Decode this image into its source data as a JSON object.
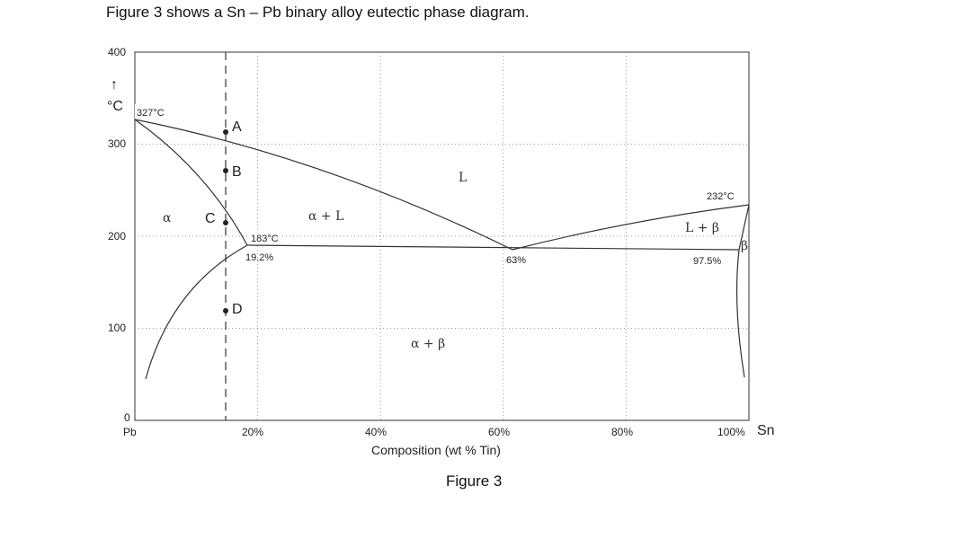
{
  "intro_text": "Figure 3 shows a Sn – Pb binary alloy eutectic phase diagram.",
  "caption": "Figure 3",
  "diagram": {
    "y_axis": {
      "unit": "°C",
      "arrow": "↑",
      "range": [
        0,
        400
      ],
      "ticks": [
        {
          "value": 0,
          "label": "0"
        },
        {
          "value": 100,
          "label": "100"
        },
        {
          "value": 200,
          "label": "200"
        },
        {
          "value": 300,
          "label": "300"
        },
        {
          "value": 400,
          "label": "400"
        }
      ]
    },
    "x_axis": {
      "title": "Composition (wt % Tin)",
      "range": [
        0,
        100
      ],
      "ticks": [
        {
          "value": 0,
          "label": "Pb"
        },
        {
          "value": 20,
          "label": "20%"
        },
        {
          "value": 40,
          "label": "40%"
        },
        {
          "value": 60,
          "label": "60%"
        },
        {
          "value": 80,
          "label": "80%"
        },
        {
          "value": 100,
          "label": "100%"
        }
      ],
      "end_label": "Sn"
    },
    "key_points": {
      "pb_melting": {
        "label": "327°C",
        "composition": 0,
        "temperature": 327
      },
      "sn_melting": {
        "label": "232°C",
        "composition": 100,
        "temperature": 232
      },
      "eutectic_temperature": {
        "label": "183°C",
        "temperature": 183
      },
      "alpha_max_solubility": {
        "label": "19.2%",
        "composition": 19.2
      },
      "eutectic_composition": {
        "label": "63%",
        "composition": 63
      },
      "beta_max_solubility": {
        "label": "97.5%",
        "composition": 97.5
      }
    },
    "phase_labels": {
      "liquid": "L",
      "alpha": "α",
      "alpha_liquid": "α + L",
      "liquid_beta": "L + β",
      "beta": "β",
      "alpha_beta": "α + β"
    },
    "alloy_line": {
      "composition": 15
    },
    "alloy_points": [
      {
        "label": "A",
        "temperature": 310
      },
      {
        "label": "B",
        "temperature": 280
      },
      {
        "label": "C",
        "temperature": 210
      },
      {
        "label": "D",
        "temperature": 120
      }
    ]
  }
}
